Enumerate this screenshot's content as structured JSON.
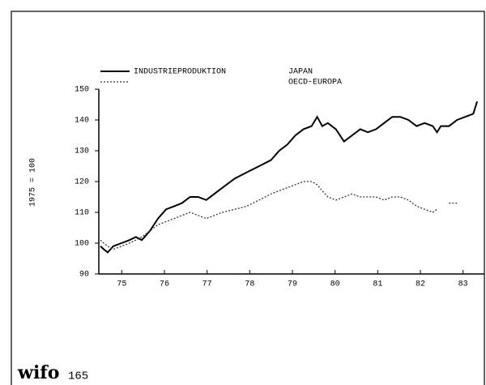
{
  "chart_data": {
    "type": "line",
    "title": "INDUSTRIEPRODUKTION",
    "y_label": "1975 = 100",
    "x": [
      1975.0,
      1975.08,
      1975.17,
      1975.3,
      1975.49,
      1975.68,
      1975.83,
      1975.97,
      1976.16,
      1976.35,
      1976.54,
      1976.73,
      1976.91,
      1977.1,
      1977.29,
      1977.48,
      1977.67,
      1977.86,
      1978.15,
      1978.43,
      1978.72,
      1979.0,
      1979.19,
      1979.38,
      1979.57,
      1979.76,
      1979.95,
      1980.08,
      1980.2,
      1980.33,
      1980.52,
      1980.71,
      1980.9,
      1981.09,
      1981.27,
      1981.46,
      1981.65,
      1981.84,
      1982.03,
      1982.22,
      1982.41,
      1982.6,
      1982.79,
      1982.89,
      1982.98,
      1983.17,
      1983.36,
      1983.55,
      1983.74,
      1983.83
    ],
    "series": [
      {
        "name": "JAPAN",
        "color": "#000000",
        "style": "solid",
        "values": [
          99,
          98,
          97,
          99,
          100,
          101,
          102,
          101,
          104,
          108,
          111,
          112,
          113,
          115,
          115,
          114,
          116,
          118,
          121,
          123,
          125,
          127,
          130,
          132,
          135,
          137,
          138,
          141,
          138,
          139,
          137,
          133,
          135,
          137,
          136,
          137,
          139,
          141,
          141,
          140,
          138,
          139,
          138,
          136,
          138,
          138,
          140,
          141,
          142,
          146
        ]
      },
      {
        "name": "OECD-EUROPA",
        "color": "#333333",
        "style": "dotted",
        "values": [
          101,
          100,
          99,
          98,
          99,
          100,
          101,
          102,
          104,
          106,
          107,
          108,
          109,
          110,
          109,
          108,
          109,
          110,
          111,
          112,
          114,
          116,
          117,
          118,
          119,
          120,
          120,
          119,
          117,
          115,
          114,
          115,
          116,
          115,
          115,
          115,
          114,
          115,
          115,
          114,
          112,
          111,
          110,
          111,
          null,
          113,
          113,
          null,
          null,
          null
        ]
      }
    ],
    "xlim": [
      1975,
      1984
    ],
    "xticks": [
      {
        "value": 1975.5,
        "label": "75"
      },
      {
        "value": 1976.5,
        "label": "76"
      },
      {
        "value": 1977.5,
        "label": "77"
      },
      {
        "value": 1978.5,
        "label": "78"
      },
      {
        "value": 1979.5,
        "label": "79"
      },
      {
        "value": 1980.5,
        "label": "80"
      },
      {
        "value": 1981.5,
        "label": "81"
      },
      {
        "value": 1982.5,
        "label": "82"
      },
      {
        "value": 1983.5,
        "label": "83"
      }
    ],
    "ylim": [
      90,
      150
    ],
    "yticks": [
      90,
      100,
      110,
      120,
      130,
      140,
      150
    ],
    "grid": false
  },
  "footer": {
    "logo": "wifo",
    "page_number": "165"
  }
}
